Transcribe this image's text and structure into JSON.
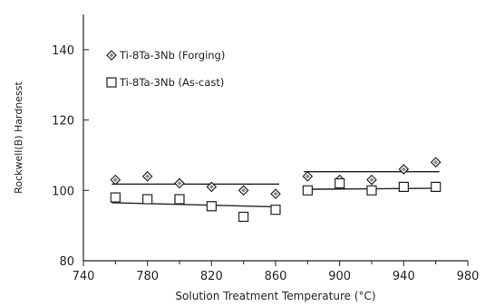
{
  "chart_data": {
    "type": "scatter",
    "title": "",
    "xlabel": "Solution Treatment Temperature (°C)",
    "ylabel": "Rockwell(B) Hardnesst",
    "xlim": [
      740,
      980
    ],
    "ylim": [
      80,
      150
    ],
    "x_ticks": [
      740,
      780,
      820,
      860,
      900,
      940,
      980
    ],
    "x_tick_labels": [
      "740",
      "780",
      "820",
      "860",
      "900",
      "940",
      "980"
    ],
    "x_minor_ticks": [
      760,
      800,
      840,
      880,
      920,
      960
    ],
    "y_ticks": [
      80,
      100,
      120,
      140
    ],
    "y_tick_labels": [
      "80",
      "100",
      "120",
      "140"
    ],
    "grid": false,
    "legend_position": "top-left",
    "series": [
      {
        "name": "Ti-8Ta-3Nb (Forging)",
        "marker": "diamond",
        "x": [
          760,
          780,
          800,
          820,
          840,
          860,
          880,
          900,
          920,
          940,
          960
        ],
        "y": [
          103,
          104,
          102,
          101,
          100,
          99,
          104,
          103,
          103,
          106,
          108
        ],
        "fits": [
          {
            "x": [
              760,
              860
            ],
            "y": [
              101.8,
              101.8
            ]
          },
          {
            "x": [
              880,
              960
            ],
            "y": [
              105.3,
              105.3
            ]
          }
        ]
      },
      {
        "name": "Ti-8Ta-3Nb (As-cast)",
        "marker": "square",
        "x": [
          760,
          780,
          800,
          820,
          840,
          860,
          880,
          900,
          920,
          940,
          960
        ],
        "y": [
          98,
          97.5,
          97.5,
          95.5,
          92.5,
          94.5,
          100,
          102,
          100,
          101,
          101
        ],
        "fits": [
          {
            "x": [
              760,
              860
            ],
            "y": [
              96.5,
              95.3
            ]
          },
          {
            "x": [
              880,
              960
            ],
            "y": [
              100.3,
              100.6
            ]
          }
        ]
      }
    ]
  }
}
